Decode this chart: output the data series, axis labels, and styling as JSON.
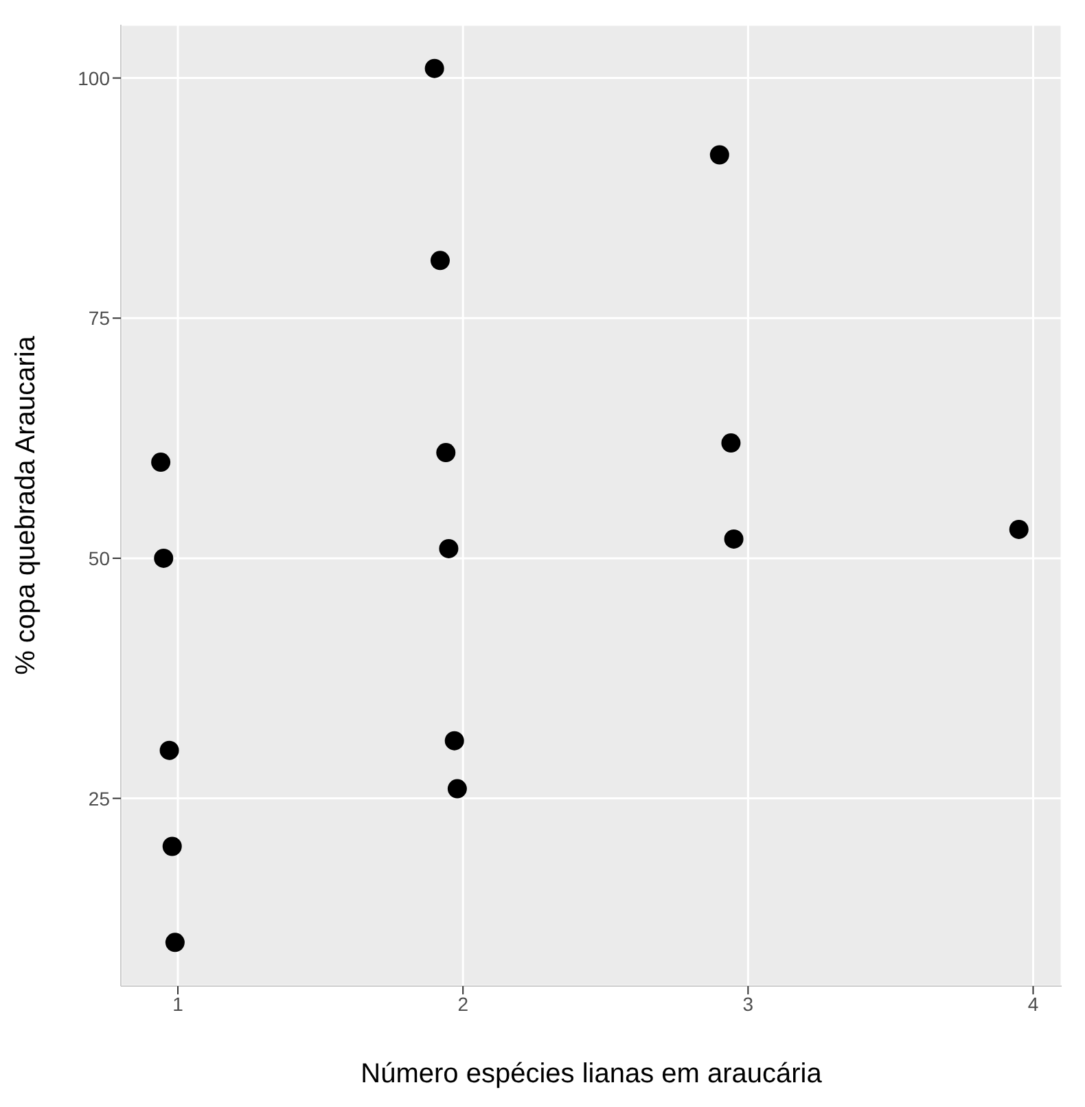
{
  "chart_data": {
    "type": "scatter",
    "xlabel": "Número espécies lianas em araucária",
    "ylabel": "% copa quebrada Araucaria",
    "x": [
      0.94,
      0.95,
      0.97,
      0.98,
      0.99,
      1.9,
      1.92,
      1.94,
      1.95,
      1.97,
      1.98,
      2.9,
      2.94,
      2.95,
      3.95
    ],
    "series": [
      {
        "color": "#000000",
        "values": [
          60,
          50,
          30,
          20,
          10,
          101,
          81,
          61,
          51,
          31,
          26,
          92,
          62,
          52,
          53
        ]
      }
    ],
    "xlim": [
      0.8,
      4.1
    ],
    "xticks": [
      1,
      2,
      3,
      4
    ],
    "ylim": [
      5.45,
      105.55
    ],
    "yticks": [
      25,
      50,
      75,
      100
    ],
    "grid": true,
    "marker": "circle"
  }
}
